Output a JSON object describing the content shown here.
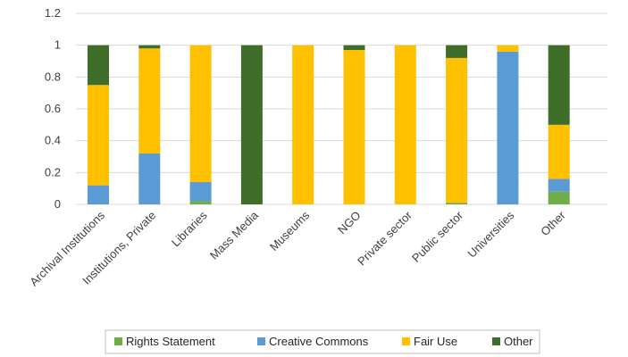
{
  "chart_data": {
    "type": "bar",
    "stacked": true,
    "categories": [
      "Archival Institutions",
      "Institutions, Private",
      "Libraries",
      "Mass Media",
      "Museums",
      "NGO",
      "Private sector",
      "Public sector",
      "Universities",
      "Other"
    ],
    "series": [
      {
        "name": "Rights Statement",
        "color": "#70AD47",
        "values": [
          0.0,
          0.0,
          0.02,
          0.0,
          0.0,
          0.0,
          0.0,
          0.01,
          0.0,
          0.08
        ]
      },
      {
        "name": "Creative Commons",
        "color": "#5B9BD5",
        "values": [
          0.12,
          0.32,
          0.12,
          0.0,
          0.0,
          0.0,
          0.0,
          0.0,
          0.96,
          0.08
        ]
      },
      {
        "name": "Fair Use",
        "color": "#FFC000",
        "values": [
          0.63,
          0.66,
          0.86,
          0.0,
          1.0,
          0.97,
          1.0,
          0.91,
          0.04,
          0.34
        ]
      },
      {
        "name": "Other",
        "color": "#3F6E2A",
        "values": [
          0.25,
          0.02,
          0.0,
          1.0,
          0.0,
          0.03,
          0.0,
          0.08,
          0.0,
          0.5
        ]
      }
    ],
    "y_ticks": [
      "0",
      "0.2",
      "0.4",
      "0.6",
      "0.8",
      "1",
      "1.2"
    ],
    "ylim": [
      0,
      1.2
    ],
    "grid": true,
    "legend_position": "bottom"
  }
}
